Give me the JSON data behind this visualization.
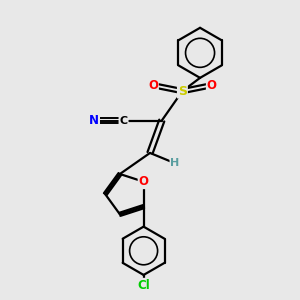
{
  "bg_color": "#e8e8e8",
  "bond_color": "#000000",
  "atom_colors": {
    "N": "#0000ff",
    "O": "#ff0000",
    "S": "#cccc00",
    "Cl": "#00cc00",
    "C": "#000000",
    "H": "#5a9ea0"
  }
}
